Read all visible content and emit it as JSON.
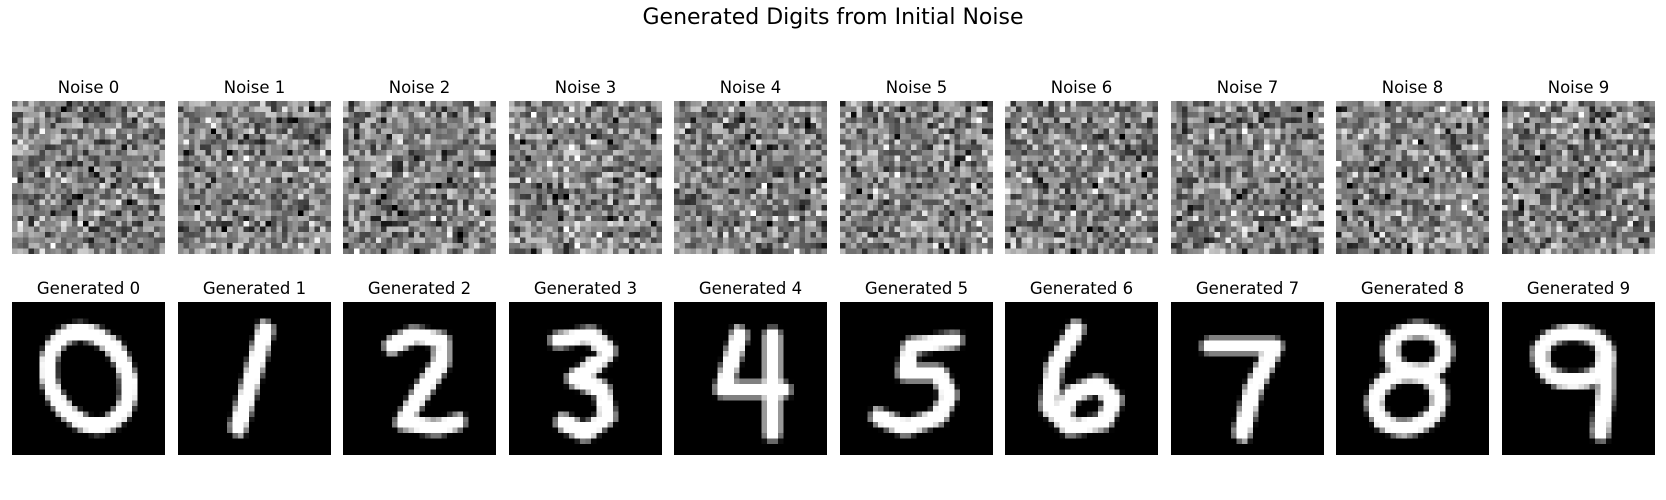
{
  "figure": {
    "title": "Generated Digits from Initial Noise"
  },
  "rows": [
    {
      "kind": "noise",
      "panels": [
        {
          "label": "Noise 0"
        },
        {
          "label": "Noise 1"
        },
        {
          "label": "Noise 2"
        },
        {
          "label": "Noise 3"
        },
        {
          "label": "Noise 4"
        },
        {
          "label": "Noise 5"
        },
        {
          "label": "Noise 6"
        },
        {
          "label": "Noise 7"
        },
        {
          "label": "Noise 8"
        },
        {
          "label": "Noise 9"
        }
      ]
    },
    {
      "kind": "generated",
      "panels": [
        {
          "label": "Generated 0",
          "digit": "0"
        },
        {
          "label": "Generated 1",
          "digit": "1"
        },
        {
          "label": "Generated 2",
          "digit": "2"
        },
        {
          "label": "Generated 3",
          "digit": "3"
        },
        {
          "label": "Generated 4",
          "digit": "4"
        },
        {
          "label": "Generated 5",
          "digit": "5"
        },
        {
          "label": "Generated 6",
          "digit": "6"
        },
        {
          "label": "Generated 7",
          "digit": "7"
        },
        {
          "label": "Generated 8",
          "digit": "8"
        },
        {
          "label": "Generated 9",
          "digit": "9"
        }
      ]
    }
  ],
  "image_grid": "28x28",
  "colormap": {
    "low": "#000000",
    "high": "#ffffff"
  }
}
